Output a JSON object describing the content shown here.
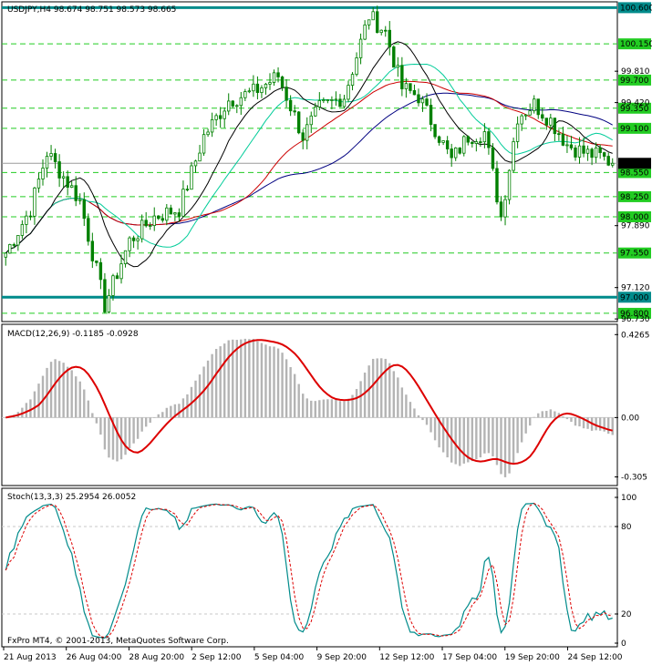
{
  "window": {
    "symbol": "USDJPY,H4",
    "ohlc": "98.674 98.751 98.573 98.665",
    "copyright": "FxPro MT4, © 2001-2013, MetaQuotes Software Corp."
  },
  "colors": {
    "bg": "#ffffff",
    "frame": "#000000",
    "grid": "#c0c0c0",
    "level_line": "#008b8b",
    "level_tag": "#22cc22",
    "candle": "#008000",
    "ma_fast": "#000000",
    "ma_mid": "#00cc99",
    "ma_slow": "#cc0000",
    "ma_long": "#000080",
    "macd_hist": "#b4b4b4",
    "macd_signal": "#dd0000",
    "stoch_main": "#008b8b",
    "stoch_signal": "#dd0000"
  },
  "price_panel": {
    "y_range": [
      96.72,
      100.65
    ],
    "current_price": "98.665",
    "tick_labels": [
      "99.810",
      "99.420",
      "97.890",
      "97.120",
      "96.730"
    ],
    "levels": [
      {
        "value": 100.6,
        "label": "100.600",
        "style": "bold"
      },
      {
        "value": 100.15,
        "label": "100.150",
        "style": "dash"
      },
      {
        "value": 99.7,
        "label": "99.700",
        "style": "dash"
      },
      {
        "value": 99.35,
        "label": "99.350",
        "style": "dash"
      },
      {
        "value": 99.1,
        "label": "99.100",
        "style": "dash"
      },
      {
        "value": 98.55,
        "label": "98.550",
        "style": "dash"
      },
      {
        "value": 98.25,
        "label": "98.250",
        "style": "dash"
      },
      {
        "value": 98.0,
        "label": "98.000",
        "style": "dash"
      },
      {
        "value": 97.55,
        "label": "97.550",
        "style": "dash"
      },
      {
        "value": 97.0,
        "label": "97.000",
        "style": "bold"
      },
      {
        "value": 96.8,
        "label": "96.800",
        "style": "dash"
      }
    ]
  },
  "macd_panel": {
    "title": "MACD(12,26,9) -0.1185 -0.0928",
    "y_range": [
      -0.34,
      0.47
    ],
    "tick_labels": [
      "0.4265",
      "0.00",
      "-0.305"
    ]
  },
  "stoch_panel": {
    "title": "Stoch(13,3,3) 25.2954 26.0052",
    "y_range": [
      0,
      100
    ],
    "tick_labels": [
      "100",
      "80",
      "20",
      "0"
    ]
  },
  "time_axis": {
    "labels": [
      "21 Aug 2013",
      "26 Aug 04:00",
      "28 Aug 20:00",
      "2 Sep 12:00",
      "5 Sep 04:00",
      "9 Sep 20:00",
      "12 Sep 12:00",
      "17 Sep 04:00",
      "19 Sep 20:00",
      "24 Sep 12:00"
    ]
  },
  "chart_data": {
    "type": "candlestick",
    "bars": 148,
    "price_keypoints": [
      [
        0,
        97.55
      ],
      [
        6,
        98.1
      ],
      [
        10,
        98.8
      ],
      [
        14,
        98.5
      ],
      [
        18,
        98.2
      ],
      [
        24,
        96.9
      ],
      [
        30,
        97.7
      ],
      [
        36,
        98.0
      ],
      [
        42,
        98.1
      ],
      [
        48,
        99.0
      ],
      [
        54,
        99.45
      ],
      [
        60,
        99.55
      ],
      [
        66,
        99.75
      ],
      [
        72,
        99.0
      ],
      [
        76,
        99.35
      ],
      [
        82,
        99.5
      ],
      [
        88,
        100.5
      ],
      [
        92,
        100.3
      ],
      [
        96,
        99.6
      ],
      [
        100,
        99.5
      ],
      [
        104,
        99.1
      ],
      [
        108,
        98.7
      ],
      [
        112,
        99.0
      ],
      [
        116,
        99.05
      ],
      [
        120,
        98.0
      ],
      [
        124,
        99.25
      ],
      [
        128,
        99.4
      ],
      [
        132,
        99.2
      ],
      [
        136,
        98.9
      ],
      [
        140,
        98.8
      ],
      [
        144,
        98.75
      ],
      [
        147,
        98.665
      ]
    ],
    "series": [
      {
        "name": "MACD(12,26,9)",
        "values": [
          -0.1185
        ]
      },
      {
        "name": "Signal",
        "values": [
          -0.0928
        ]
      },
      {
        "name": "Stoch %K",
        "values": [
          25.2954
        ]
      },
      {
        "name": "Stoch %D",
        "values": [
          26.0052
        ]
      }
    ]
  }
}
